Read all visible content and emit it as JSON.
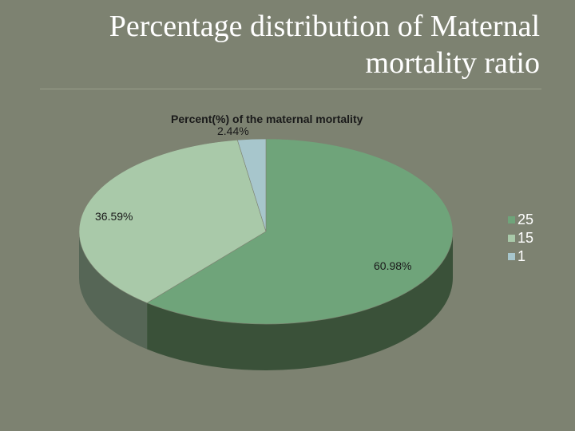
{
  "slide": {
    "title_line1": "Percentage distribution of Maternal",
    "title_line2": "mortality ratio"
  },
  "chart_data": {
    "type": "pie",
    "title": "Percent(%) of the maternal mortality",
    "slices": [
      {
        "legend": "25",
        "value": 25,
        "label": "60.98%",
        "color": "#6fa47a"
      },
      {
        "legend": "15",
        "value": 15,
        "label": "36.59%",
        "color": "#a9c9a9"
      },
      {
        "legend": "1",
        "value": 1,
        "label": "2.44%",
        "color": "#a7c6cc"
      }
    ],
    "legend_position": "right",
    "style": "3d"
  }
}
